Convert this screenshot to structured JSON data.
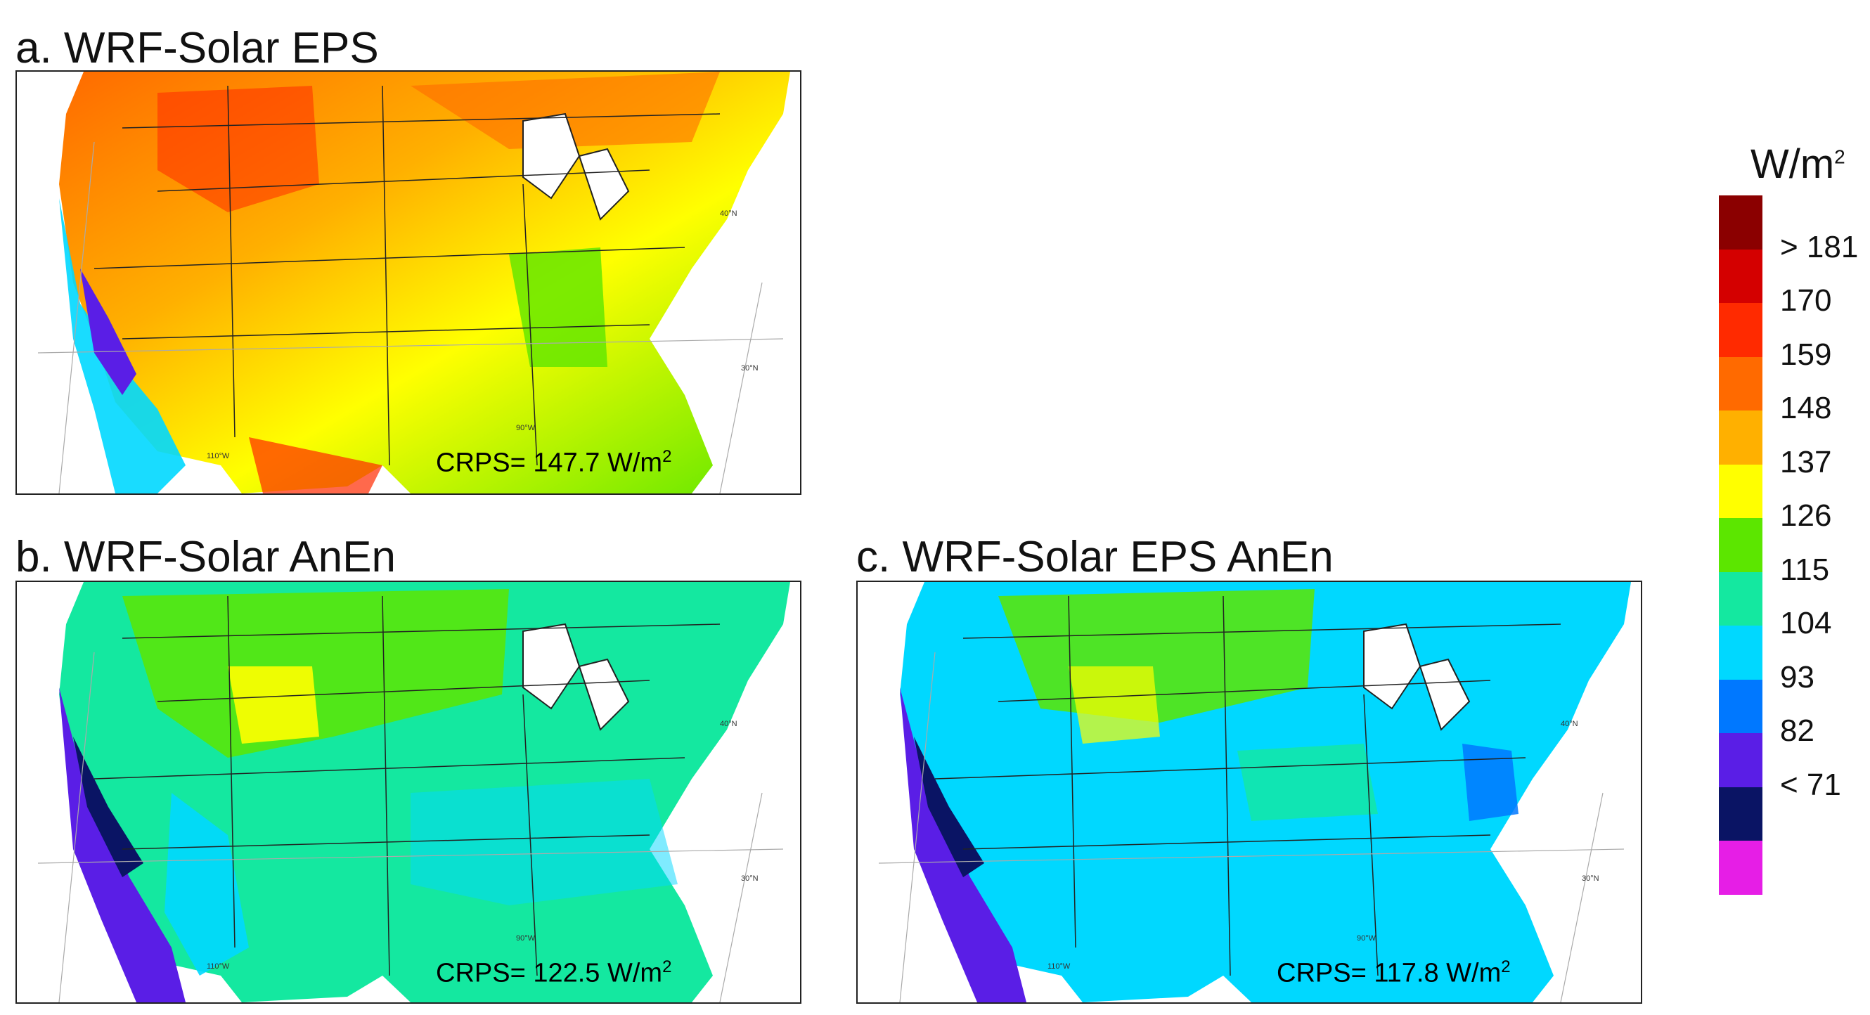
{
  "panels": [
    {
      "title": "a. WRF-Solar EPS",
      "crps_text": "CRPS= 147.7 W/m",
      "crps_sup": "2"
    },
    {
      "title": "b. WRF-Solar AnEn",
      "crps_text": "CRPS= 122.5 W/m",
      "crps_sup": "2"
    },
    {
      "title": "c. WRF-Solar EPS AnEn",
      "crps_text": "CRPS= 117.8 W/m",
      "crps_sup": "2"
    }
  ],
  "graticule_labels": [
    "40°N",
    "30°N",
    "90°W",
    "110°W"
  ],
  "legend": {
    "unit": "W/m",
    "unit_sup": "2",
    "colors": [
      "#8b0000",
      "#d40000",
      "#ff2a00",
      "#ff6a00",
      "#ffb000",
      "#ffff00",
      "#5ce600",
      "#14e8a0",
      "#00d8ff",
      "#0078ff",
      "#5a1ee6",
      "#0a1464",
      "#e61ee6"
    ],
    "labels": [
      "> 181",
      "170",
      "159",
      "148",
      "137",
      "126",
      "115",
      "104",
      "93",
      "82",
      "< 71"
    ]
  },
  "colors": {
    "panel_a_main": "#ffb000",
    "panel_b_main": "#14e8a0",
    "panel_c_main": "#00d8ff",
    "land_border": "#222222"
  }
}
